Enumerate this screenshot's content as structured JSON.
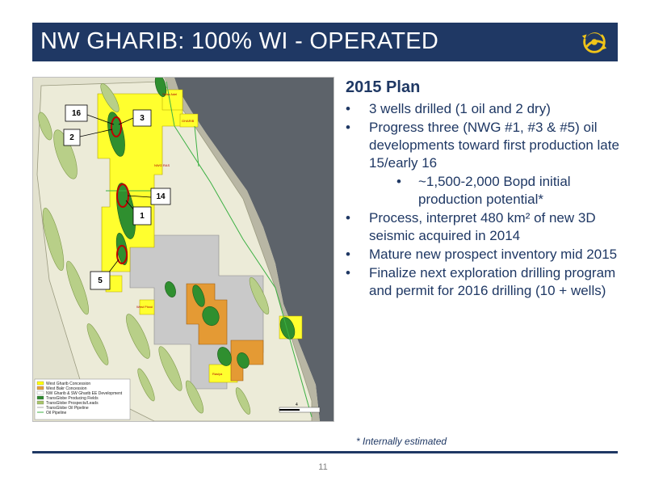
{
  "slide": {
    "title": "NW GHARIB: 100% WI - OPERATED",
    "page_number": "11",
    "footnote": "* Internally estimated"
  },
  "plan": {
    "heading": "2015 Plan",
    "bullet_glyph": "•",
    "items": [
      "3 wells drilled (1 oil and 2 dry)",
      "Progress three  (NWG #1, #3 & #5) oil developments toward first production late 15/early 16",
      "~1,500-2,000 Bopd initial production potential*",
      "Process, interpret 480 km² of new 3D seismic acquired in 2014",
      "Mature new prospect inventory mid 2015",
      "Finalize next exploration drilling program and permit for 2016 drilling (10 + wells)"
    ]
  },
  "map": {
    "well_callouts": [
      "16",
      "3",
      "2",
      "14",
      "1",
      "5"
    ],
    "area_labels": [
      "Sidra Adel",
      "GHARIB",
      "NWG RAS",
      "West Pisrol",
      "Rasiya"
    ],
    "legend": [
      {
        "label": "West Gharib Concession",
        "color": "#ffff00"
      },
      {
        "label": "West Bakr Concession",
        "color": "#e6a23c"
      },
      {
        "label": "NW Gharib & SW Gharib EE Development",
        "color": "#ffffff"
      },
      {
        "label": "TransGlobe Producing Fields",
        "color": "#2e8b2e"
      },
      {
        "label": "TransGlobe Prospects/Leads",
        "color": "#a8c56a"
      },
      {
        "label": "TransGlobe Oil Pipeline",
        "color": "#ffffff"
      },
      {
        "label": "Oil Pipeline",
        "color": "#3cb043"
      }
    ],
    "scale_label": "4",
    "colors": {
      "desert": "#e3e2cf",
      "sea": "#595f66",
      "concession": "#ffff2e",
      "west_bakr": "#e49a34",
      "development_block": "#c9c9c9",
      "producing": "#2f8f2f",
      "prospect": "#b8cf88",
      "pipeline": "#3cb043",
      "well_ring": "#c00000"
    }
  },
  "colors": {
    "title_bar": "#1f3864",
    "text": "#1f3864",
    "logo": "#f0c419"
  }
}
